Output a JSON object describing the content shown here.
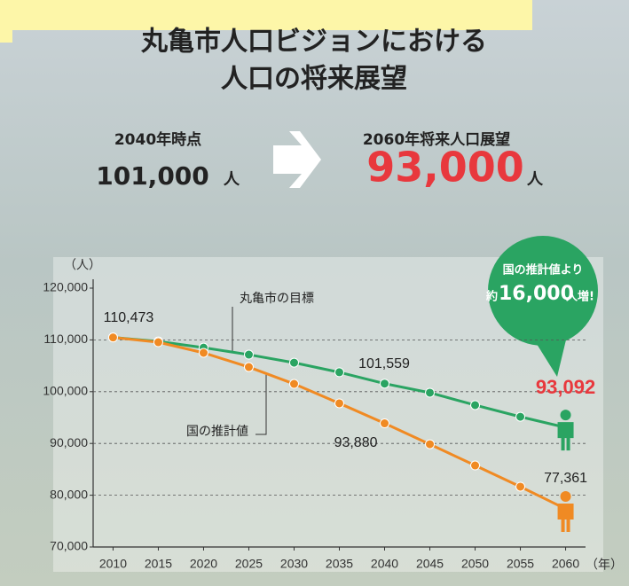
{
  "header": {
    "title_lines": [
      "丸亀市人口ビジョンにおける",
      "人口の将来展望"
    ],
    "left_label": "2040年時点",
    "left_value": "101,000",
    "left_unit": "人",
    "right_label": "2060年将来人口展望",
    "right_value": "93,000",
    "right_unit": "人"
  },
  "bubble": {
    "line1": "国の推計値より",
    "prefix": "約",
    "value": "16,000",
    "suffix": "人増!"
  },
  "chart_data": {
    "type": "line",
    "y_unit": "（人）",
    "x_unit": "（年）",
    "x": [
      2010,
      2015,
      2020,
      2025,
      2030,
      2035,
      2040,
      2045,
      2050,
      2055,
      2060
    ],
    "series": [
      {
        "name": "丸亀市の目標",
        "color": "#2aa462",
        "values": [
          110473,
          109700,
          108500,
          107150,
          105600,
          103750,
          101559,
          99800,
          97400,
          95150,
          93092
        ],
        "value_labels": [
          "110,473",
          null,
          null,
          null,
          null,
          null,
          "101,559",
          null,
          null,
          null,
          "93,092"
        ]
      },
      {
        "name": "国の推計値",
        "color": "#f08a23",
        "values": [
          110473,
          109550,
          107500,
          104750,
          101500,
          97750,
          93880,
          89850,
          85750,
          81650,
          77361
        ],
        "value_labels": [
          null,
          null,
          null,
          null,
          null,
          null,
          "93,880",
          null,
          null,
          null,
          "77,361"
        ]
      }
    ],
    "xlim": [
      2007.8,
      2062.2
    ],
    "xticks": [
      2010,
      2015,
      2020,
      2025,
      2030,
      2035,
      2040,
      2045,
      2050,
      2055,
      2060
    ],
    "ylim": [
      70000,
      120000
    ],
    "yticks": [
      {
        "value": 70000,
        "label": "70,000"
      },
      {
        "value": 80000,
        "label": "80,000"
      },
      {
        "value": 90000,
        "label": "90,000"
      },
      {
        "value": 100000,
        "label": "100,000"
      },
      {
        "value": 110000,
        "label": "110,000"
      },
      {
        "value": 120000,
        "label": "120,000"
      }
    ],
    "grid": true
  }
}
